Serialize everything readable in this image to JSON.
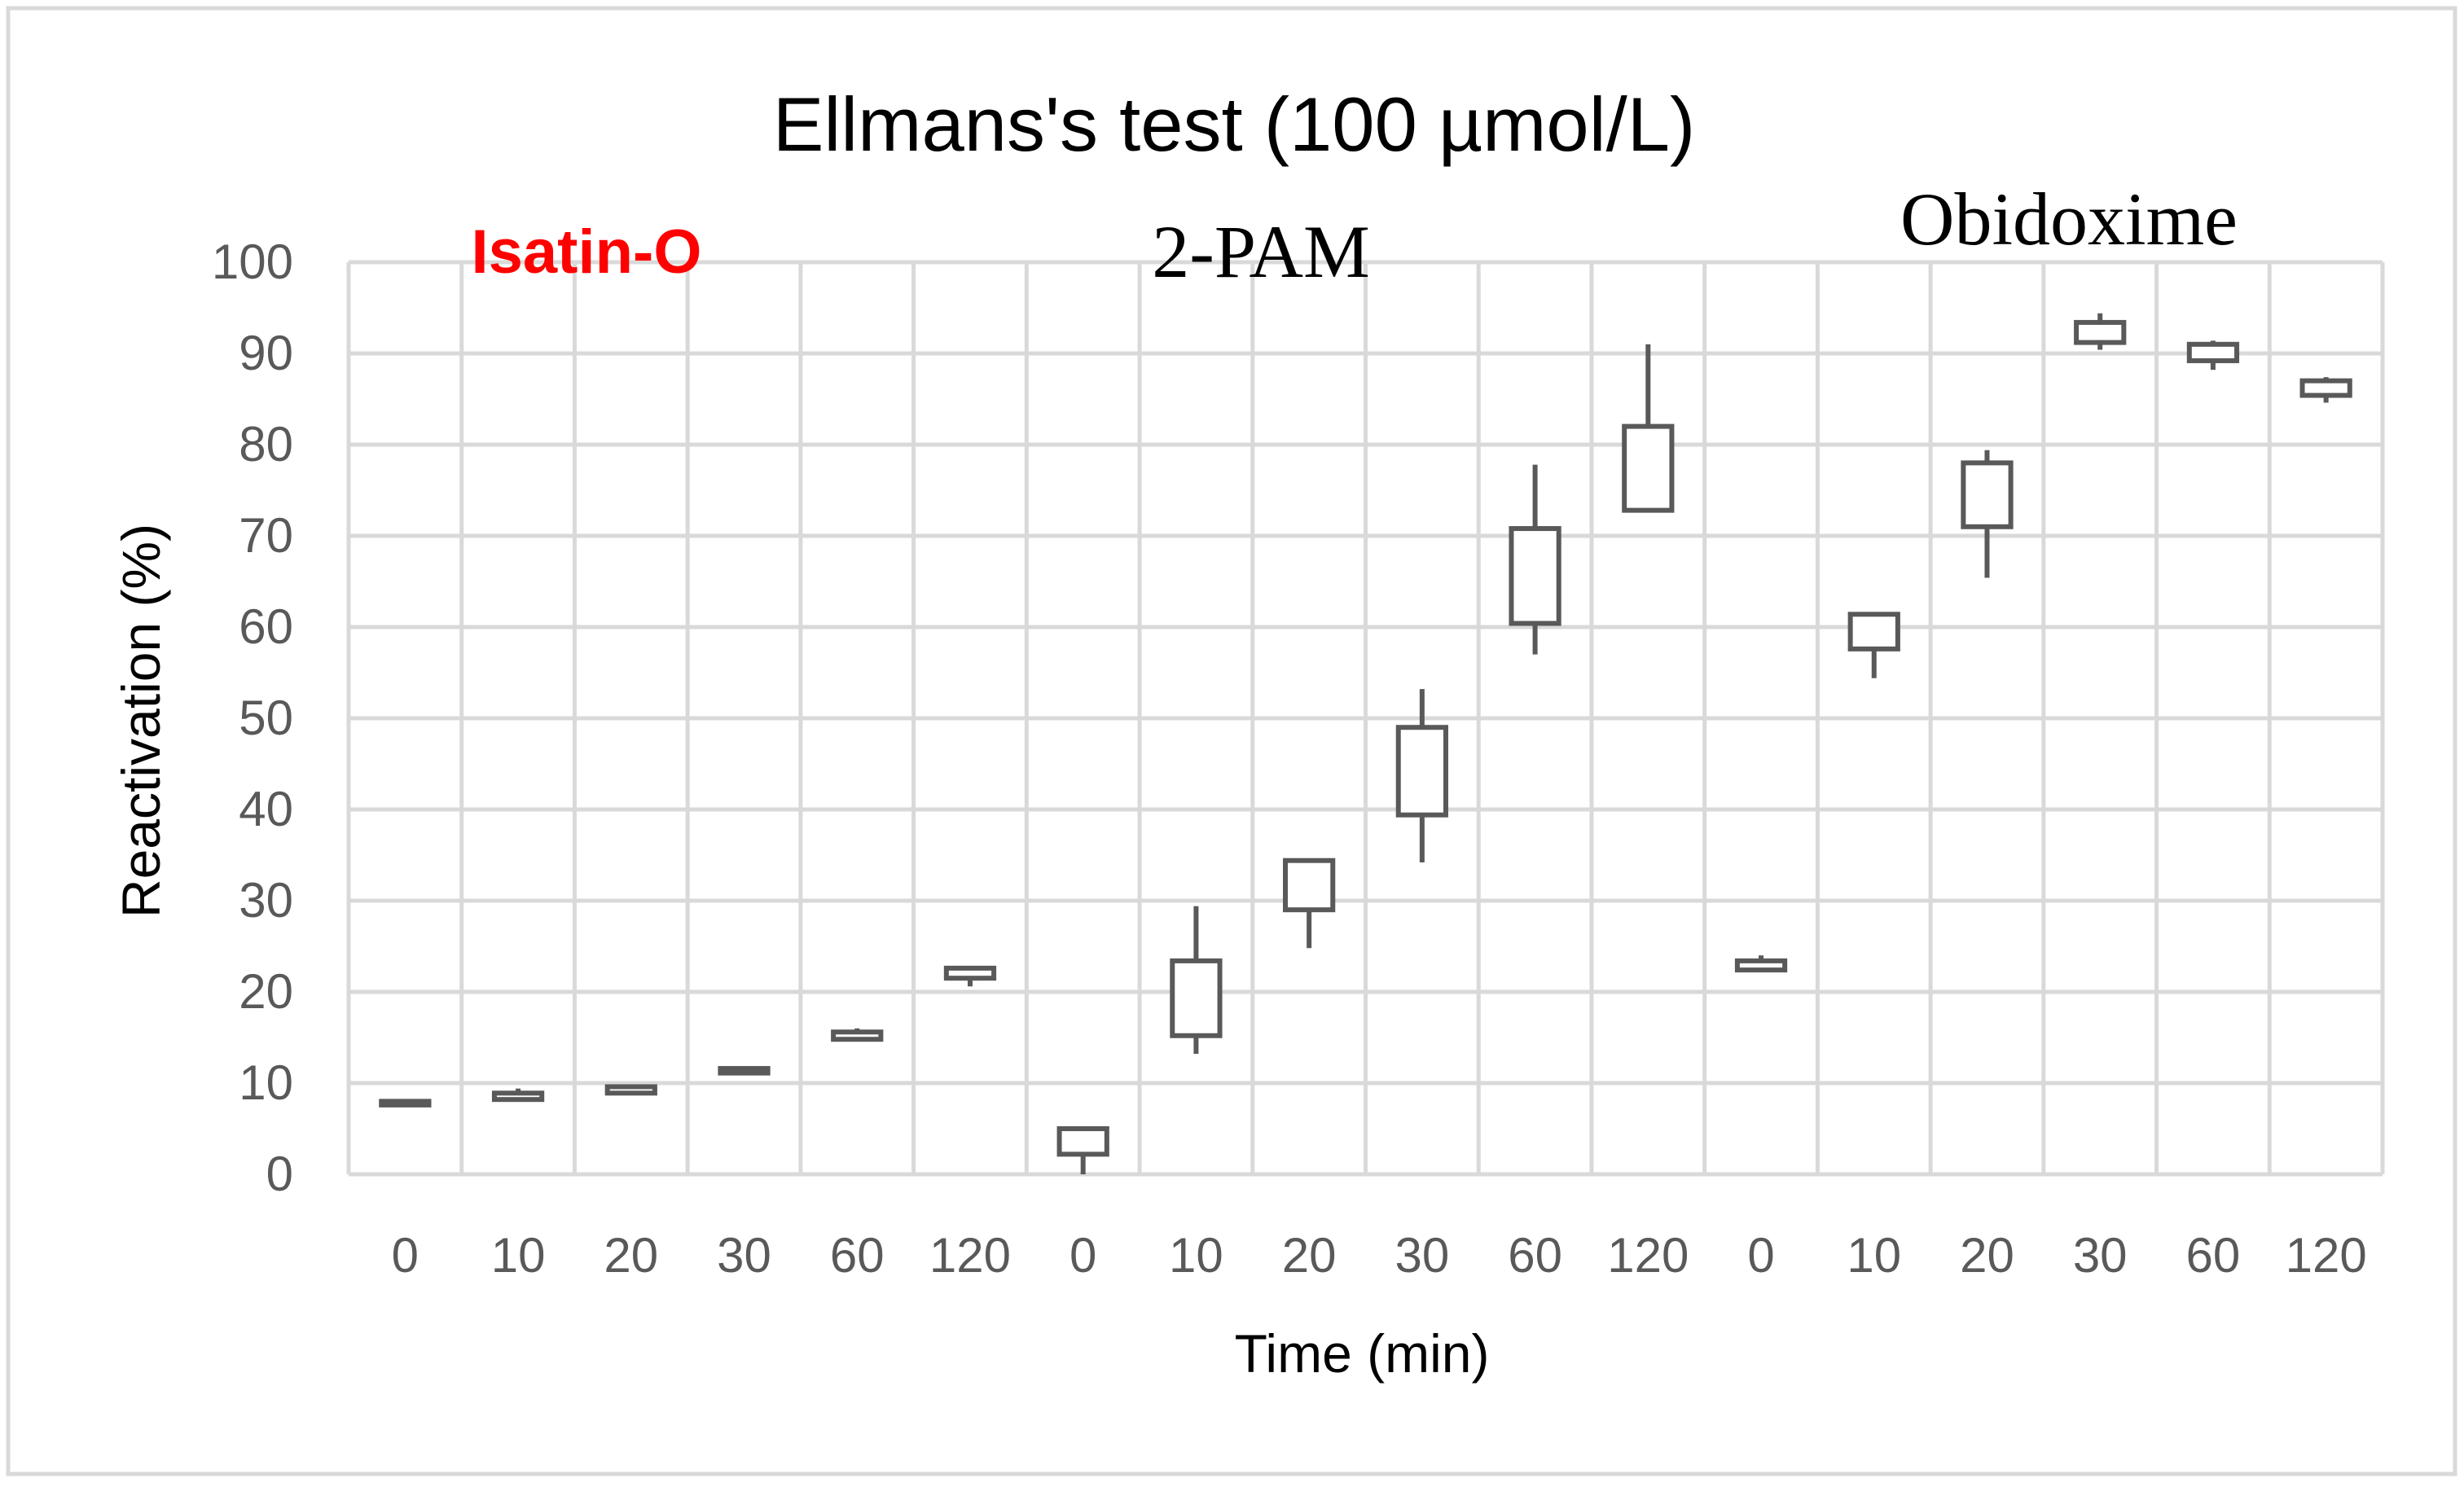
{
  "chart_data": {
    "type": "box",
    "title": "Ellmans's test (100 µmol/L)",
    "xlabel": "Time (min)",
    "ylabel": "Reactivation (%)",
    "ylim": [
      0,
      100
    ],
    "yticks": [
      0,
      10,
      20,
      30,
      40,
      50,
      60,
      70,
      80,
      90,
      100
    ],
    "grid": true,
    "categories": [
      "0",
      "10",
      "20",
      "30",
      "60",
      "120",
      "0",
      "10",
      "20",
      "30",
      "60",
      "120",
      "0",
      "10",
      "20",
      "30",
      "60",
      "120"
    ],
    "groups": [
      {
        "name": "Isatin-O",
        "color": "#ff0000",
        "start": 0,
        "count": 6
      },
      {
        "name": "2-PAM",
        "color": "#000000",
        "start": 6,
        "count": 6
      },
      {
        "name": "Obidoxime",
        "color": "#000000",
        "start": 12,
        "count": 6
      }
    ],
    "boxes": [
      {
        "min": 7.6,
        "q1": 7.6,
        "q3": 8.0,
        "max": 8.0
      },
      {
        "min": 8.1,
        "q1": 8.2,
        "q3": 8.9,
        "max": 9.4
      },
      {
        "min": 8.8,
        "q1": 8.9,
        "q3": 9.6,
        "max": 9.8
      },
      {
        "min": 11.0,
        "q1": 11.1,
        "q3": 11.6,
        "max": 11.7
      },
      {
        "min": 14.6,
        "q1": 14.8,
        "q3": 15.6,
        "max": 16.0
      },
      {
        "min": 20.6,
        "q1": 21.5,
        "q3": 22.6,
        "max": 22.6
      },
      {
        "min": 0.0,
        "q1": 2.2,
        "q3": 5.0,
        "max": 5.0
      },
      {
        "min": 13.2,
        "q1": 15.2,
        "q3": 23.4,
        "max": 29.4
      },
      {
        "min": 24.8,
        "q1": 29.0,
        "q3": 34.4,
        "max": 34.4
      },
      {
        "min": 34.2,
        "q1": 39.4,
        "q3": 49.0,
        "max": 53.2
      },
      {
        "min": 57.0,
        "q1": 60.4,
        "q3": 70.8,
        "max": 77.8
      },
      {
        "min": 72.8,
        "q1": 72.8,
        "q3": 82.0,
        "max": 91.0
      },
      {
        "min": 22.2,
        "q1": 22.4,
        "q3": 23.4,
        "max": 24.0
      },
      {
        "min": 54.4,
        "q1": 57.6,
        "q3": 61.4,
        "max": 61.4
      },
      {
        "min": 65.4,
        "q1": 71.0,
        "q3": 78.0,
        "max": 79.4
      },
      {
        "min": 90.4,
        "q1": 91.2,
        "q3": 93.4,
        "max": 94.4
      },
      {
        "min": 88.2,
        "q1": 89.2,
        "q3": 91.0,
        "max": 91.4
      },
      {
        "min": 84.6,
        "q1": 85.4,
        "q3": 87.0,
        "max": 87.4
      }
    ],
    "box_color": "#595959",
    "gridline_color": "#d9d9d9",
    "frame_border_color": "#d9d9d9"
  }
}
